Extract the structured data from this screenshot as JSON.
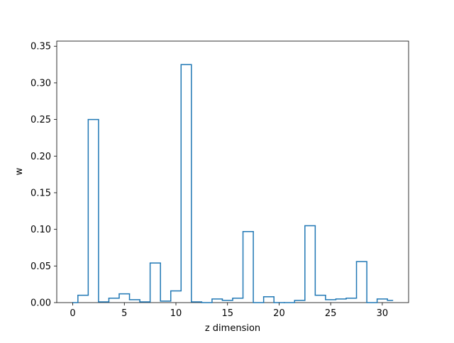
{
  "chart_data": {
    "type": "step",
    "title": "",
    "xlabel": "z dimension",
    "ylabel": "w",
    "xlim": [
      -1.55,
      32.55
    ],
    "ylim": [
      0,
      0.357
    ],
    "xticks": [
      0,
      5,
      10,
      15,
      20,
      25,
      30
    ],
    "yticks": [
      0.0,
      0.05,
      0.1,
      0.15,
      0.2,
      0.25,
      0.3,
      0.35
    ],
    "xtick_labels": [
      "0",
      "5",
      "10",
      "15",
      "20",
      "25",
      "30"
    ],
    "ytick_labels": [
      "0.00",
      "0.05",
      "0.10",
      "0.15",
      "0.20",
      "0.25",
      "0.30",
      "0.35"
    ],
    "grid": false,
    "line_color": "#1f77b4",
    "step_edges": [
      0,
      0.5,
      1.5,
      2.5,
      3.5,
      4.5,
      5.5,
      6.5,
      7.5,
      8.5,
      9.5,
      10.5,
      11.5,
      12.5,
      13.5,
      14.5,
      15.5,
      16.5,
      17.5,
      18.5,
      19.5,
      20.5,
      21.5,
      22.5,
      23.5,
      24.5,
      25.5,
      26.5,
      27.5,
      28.5,
      29.5,
      30.5,
      31
    ],
    "values": [
      0.0,
      0.01,
      0.25,
      0.001,
      0.006,
      0.012,
      0.004,
      0.001,
      0.054,
      0.002,
      0.016,
      0.325,
      0.001,
      0.0,
      0.005,
      0.003,
      0.006,
      0.097,
      0.0,
      0.008,
      0.0,
      0.0,
      0.003,
      0.105,
      0.01,
      0.004,
      0.005,
      0.006,
      0.056,
      0.0,
      0.005,
      0.003
    ]
  }
}
